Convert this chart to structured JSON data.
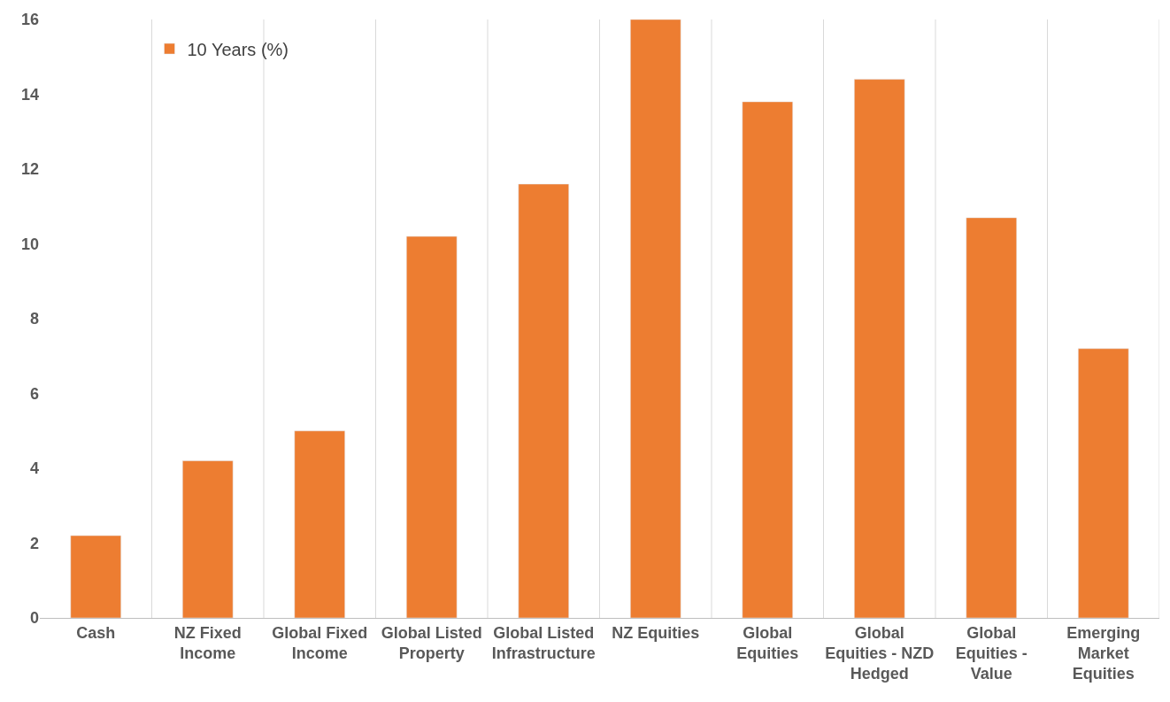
{
  "chart_data": {
    "type": "bar",
    "categories": [
      "Cash",
      "NZ Fixed Income",
      "Global Fixed Income",
      "Global Listed Property",
      "Global Listed Infrastructure",
      "NZ Equities",
      "Global Equities",
      "Global Equities - NZD Hedged",
      "Global Equities - Value",
      "Emerging Market Equities"
    ],
    "series": [
      {
        "name": "10 Years (%)",
        "color": "#ed7d31",
        "values": [
          2.2,
          4.2,
          5.0,
          10.2,
          11.6,
          16.0,
          13.8,
          14.4,
          10.7,
          7.2
        ]
      }
    ],
    "ylim": [
      0,
      16
    ],
    "yticks": [
      0,
      2,
      4,
      6,
      8,
      10,
      12,
      14,
      16
    ],
    "grid": "x",
    "legend": "top left"
  }
}
